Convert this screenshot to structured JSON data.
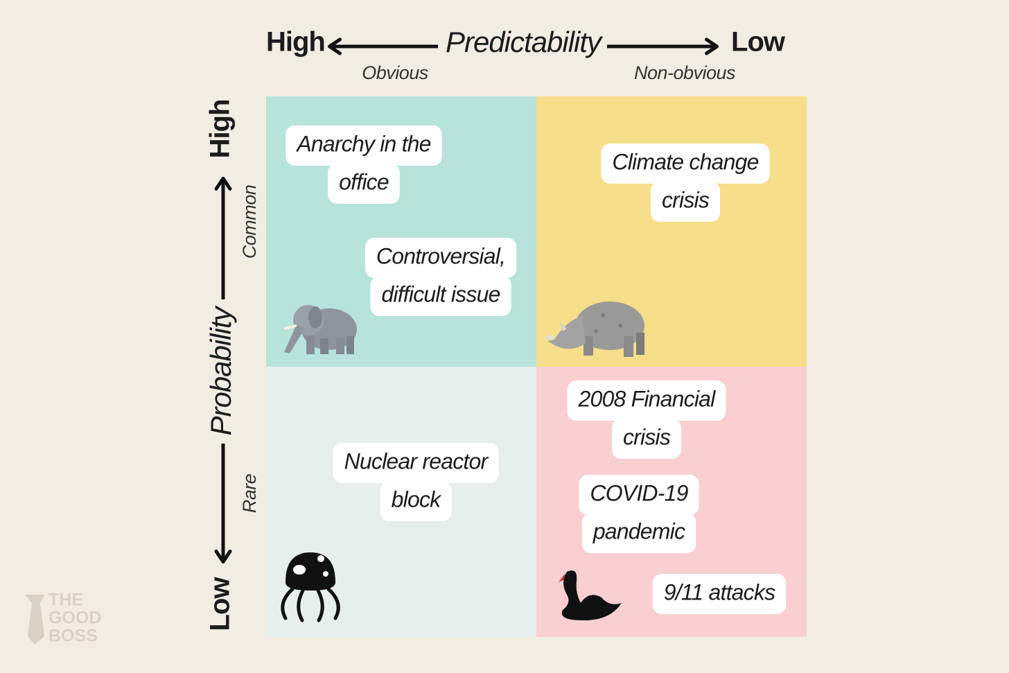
{
  "x_axis": {
    "high": "High",
    "title": "Predictability",
    "low": "Low",
    "left_note": "Obvious",
    "right_note": "Non-obvious"
  },
  "y_axis": {
    "high": "High",
    "title": "Probability",
    "low": "Low",
    "top_note": "Common",
    "bottom_note": "Rare"
  },
  "quadrants": [
    {
      "items": [
        {
          "lines": [
            "Anarchy in the",
            "office"
          ]
        },
        {
          "lines": [
            "Controversial,",
            "difficult issue"
          ]
        }
      ]
    },
    {
      "items": [
        {
          "lines": [
            "Climate change",
            "crisis"
          ]
        }
      ]
    },
    {
      "items": [
        {
          "lines": [
            "Nuclear reactor",
            "block"
          ]
        }
      ]
    },
    {
      "items": [
        {
          "lines": [
            "2008 Financial",
            "crisis"
          ]
        },
        {
          "lines": [
            "COVID-19",
            "pandemic"
          ]
        },
        {
          "lines": [
            "9/11 attacks"
          ]
        }
      ]
    }
  ],
  "logo": [
    "THE",
    "GOOD",
    "BOSS"
  ]
}
